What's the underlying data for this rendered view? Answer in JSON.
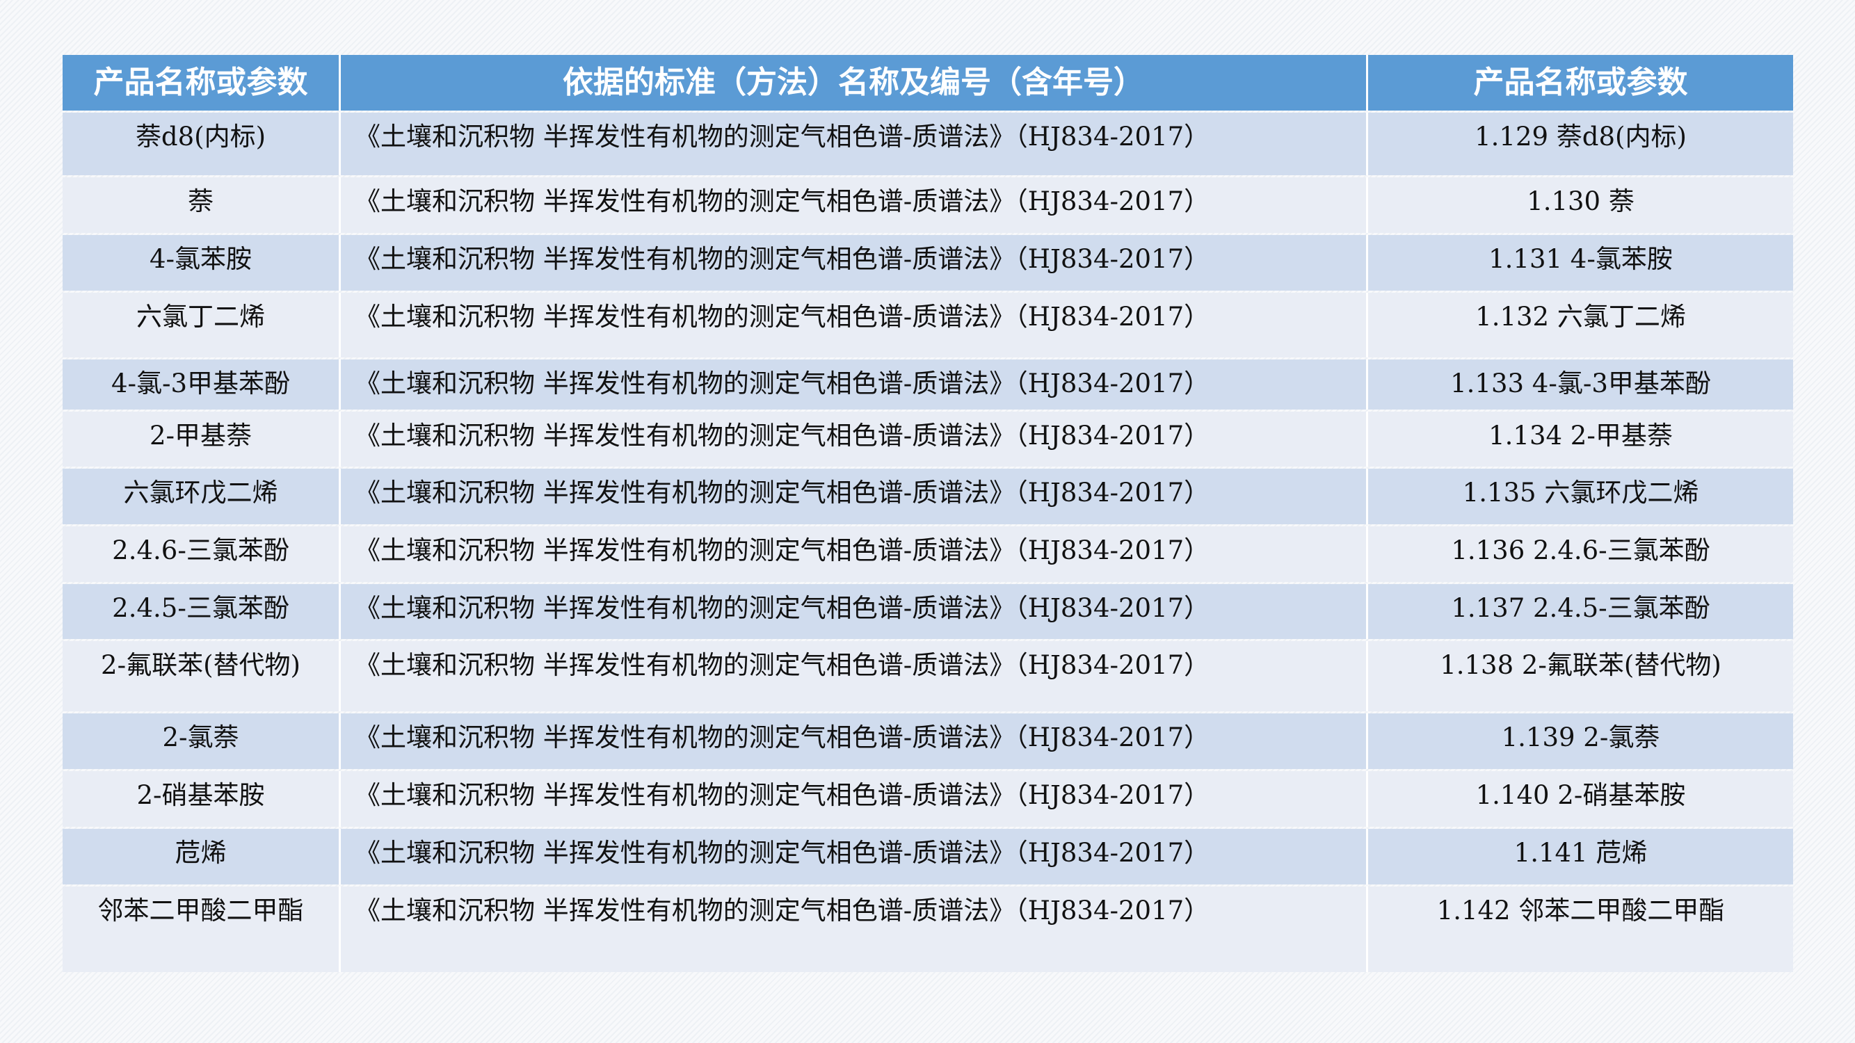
{
  "table": {
    "headers": [
      "产品名称或参数",
      "依据的标准（方法）名称及编号（含年号）",
      "产品名称或参数"
    ],
    "rows": [
      {
        "name": "萘d8(内标)",
        "standard": "《土壤和沉积物 半挥发性有机物的测定气相色谱-质谱法》（HJ834-2017）",
        "param": "1.129 萘d8(内标)"
      },
      {
        "name": "萘",
        "standard": "《土壤和沉积物 半挥发性有机物的测定气相色谱-质谱法》（HJ834-2017）",
        "param": "1.130 萘"
      },
      {
        "name": "4-氯苯胺",
        "standard": "《土壤和沉积物 半挥发性有机物的测定气相色谱-质谱法》（HJ834-2017）",
        "param": "1.131 4-氯苯胺"
      },
      {
        "name": "六氯丁二烯",
        "standard": "《土壤和沉积物 半挥发性有机物的测定气相色谱-质谱法》（HJ834-2017）",
        "param": "1.132 六氯丁二烯"
      },
      {
        "name": "4-氯-3甲基苯酚",
        "standard": "《土壤和沉积物 半挥发性有机物的测定气相色谱-质谱法》（HJ834-2017）",
        "param": "1.133 4-氯-3甲基苯酚"
      },
      {
        "name": "2-甲基萘",
        "standard": "《土壤和沉积物 半挥发性有机物的测定气相色谱-质谱法》（HJ834-2017）",
        "param": "1.134 2-甲基萘"
      },
      {
        "name": "六氯环戊二烯",
        "standard": "《土壤和沉积物 半挥发性有机物的测定气相色谱-质谱法》（HJ834-2017）",
        "param": "1.135 六氯环戊二烯"
      },
      {
        "name": "2.4.6-三氯苯酚",
        "standard": "《土壤和沉积物 半挥发性有机物的测定气相色谱-质谱法》（HJ834-2017）",
        "param": "1.136 2.4.6-三氯苯酚"
      },
      {
        "name": "2.4.5-三氯苯酚",
        "standard": "《土壤和沉积物 半挥发性有机物的测定气相色谱-质谱法》（HJ834-2017）",
        "param": "1.137 2.4.5-三氯苯酚"
      },
      {
        "name": "2-氟联苯(替代物)",
        "standard": "《土壤和沉积物 半挥发性有机物的测定气相色谱-质谱法》（HJ834-2017）",
        "param": "1.138 2-氟联苯(替代物)"
      },
      {
        "name": "2-氯萘",
        "standard": "《土壤和沉积物 半挥发性有机物的测定气相色谱-质谱法》（HJ834-2017）",
        "param": "1.139 2-氯萘"
      },
      {
        "name": "2-硝基苯胺",
        "standard": "《土壤和沉积物 半挥发性有机物的测定气相色谱-质谱法》（HJ834-2017）",
        "param": "1.140 2-硝基苯胺"
      },
      {
        "name": "苊烯",
        "standard": "《土壤和沉积物 半挥发性有机物的测定气相色谱-质谱法》（HJ834-2017）",
        "param": "1.141 苊烯"
      },
      {
        "name": "邻苯二甲酸二甲酯",
        "standard": "《土壤和沉积物 半挥发性有机物的测定气相色谱-质谱法》（HJ834-2017）",
        "param": "1.142 邻苯二甲酸二甲酯"
      }
    ]
  },
  "colors": {
    "header": "#5b9bd5",
    "row_dark": "#d0dcee",
    "row_light": "#e9edf5"
  }
}
